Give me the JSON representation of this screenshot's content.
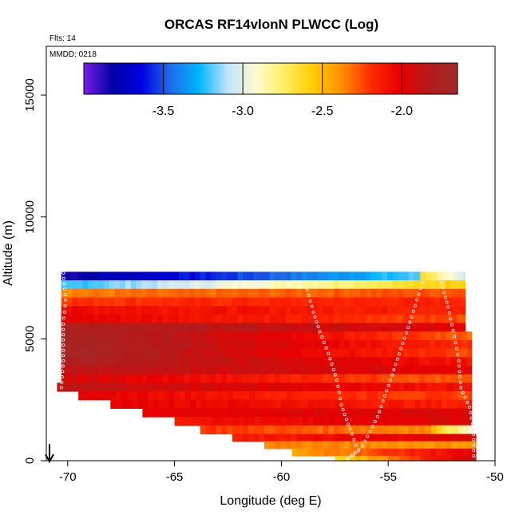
{
  "chart_data": {
    "type": "heatmap",
    "title": "ORCAS RF14vlonN PLWCC (Log)",
    "xlabel": "Longitude (deg E)",
    "ylabel": "Altitude (m)",
    "xlim": [
      -71,
      -50
    ],
    "ylim": [
      0,
      17000
    ],
    "x_ticks": [
      -70,
      -65,
      -60,
      -55,
      -50
    ],
    "x_tick_labels": [
      "-70",
      "-65",
      "-60",
      "-55",
      "-50"
    ],
    "y_ticks": [
      0,
      5000,
      10000,
      15000
    ],
    "y_tick_labels": [
      "0",
      "5000",
      "10000",
      "15000"
    ],
    "annotations": {
      "flights": "Flts: 14",
      "date": "MMDD: 0218"
    },
    "colorbar": {
      "range": [
        -4.0,
        -1.65
      ],
      "ticks": [
        -3.5,
        -3.0,
        -2.5,
        -2.0
      ],
      "tick_labels": [
        "-3.5",
        "-3.0",
        "-2.5",
        "-2.0"
      ],
      "stops": [
        "#7a1fe6",
        "#0000a6",
        "#0000e0",
        "#1e6be8",
        "#00b4ff",
        "#bfe3ff",
        "#fffbd0",
        "#ffee60",
        "#ffcc00",
        "#ff8c00",
        "#ff2a00",
        "#e80000",
        "#b51a1a",
        "#9e2a2a"
      ]
    },
    "layers": [
      {
        "ybot": 7400,
        "ytop": 7750,
        "xl": -70.3,
        "xr": -53.5,
        "vl": -3.85,
        "vr": -3.2
      },
      {
        "ybot": 7400,
        "ytop": 7750,
        "xl": -53.5,
        "xr": -51.4,
        "vl": -2.6,
        "vr": -3.1
      },
      {
        "ybot": 7050,
        "ytop": 7400,
        "xl": -70.3,
        "xr": -51.4,
        "vl": -3.25,
        "vr": -2.55
      },
      {
        "ybot": 6700,
        "ytop": 7050,
        "xl": -70.3,
        "xr": -51.4,
        "vl": -2.35,
        "vr": -2.25
      },
      {
        "ybot": 6350,
        "ytop": 6700,
        "xl": -70.3,
        "xr": -51.4,
        "vl": -2.2,
        "vr": -2.15
      },
      {
        "ybot": 6000,
        "ytop": 6350,
        "xl": -70.3,
        "xr": -51.4,
        "vl": -2.05,
        "vr": -2.15
      },
      {
        "ybot": 5650,
        "ytop": 6000,
        "xl": -70.3,
        "xr": -51.4,
        "vl": -2.0,
        "vr": -2.25
      },
      {
        "ybot": 5300,
        "ytop": 5650,
        "xl": -70.3,
        "xr": -51.4,
        "vl": -1.75,
        "vr": -2.0
      },
      {
        "ybot": 4950,
        "ytop": 5300,
        "xl": -70.3,
        "xr": -51.1,
        "vl": -1.7,
        "vr": -2.3
      },
      {
        "ybot": 4600,
        "ytop": 4950,
        "xl": -70.3,
        "xr": -51.1,
        "vl": -1.7,
        "vr": -2.2
      },
      {
        "ybot": 4250,
        "ytop": 4600,
        "xl": -70.3,
        "xr": -51.1,
        "vl": -1.7,
        "vr": -2.25
      },
      {
        "ybot": 3900,
        "ytop": 4250,
        "xl": -70.3,
        "xr": -51.1,
        "vl": -1.75,
        "vr": -2.1
      },
      {
        "ybot": 3550,
        "ytop": 3900,
        "xl": -70.3,
        "xr": -51.1,
        "vl": -1.85,
        "vr": -2.0
      },
      {
        "ybot": 3200,
        "ytop": 3550,
        "xl": -70.3,
        "xr": -51.1,
        "vl": -1.95,
        "vr": -2.3
      },
      {
        "ybot": 2850,
        "ytop": 3200,
        "xl": -70.5,
        "xr": -51.1,
        "vl": -1.85,
        "vr": -2.1
      },
      {
        "ybot": 2500,
        "ytop": 2850,
        "xl": -69.5,
        "xr": -51.1,
        "vl": -2.0,
        "vr": -2.25
      },
      {
        "ybot": 2150,
        "ytop": 2500,
        "xl": -68.0,
        "xr": -51.1,
        "vl": -2.0,
        "vr": -2.15
      },
      {
        "ybot": 1800,
        "ytop": 2150,
        "xl": -66.5,
        "xr": -51.1,
        "vl": -2.0,
        "vr": -1.95
      },
      {
        "ybot": 1450,
        "ytop": 1800,
        "xl": -65.0,
        "xr": -51.1,
        "vl": -2.1,
        "vr": -1.95
      },
      {
        "ybot": 1100,
        "ytop": 1450,
        "xl": -63.8,
        "xr": -51.1,
        "vl": -2.2,
        "vr": -2.4
      },
      {
        "ybot": 1100,
        "ytop": 1450,
        "xl": -53.0,
        "xr": -51.1,
        "vl": -2.5,
        "vr": -2.95
      },
      {
        "ybot": 800,
        "ytop": 1100,
        "xl": -62.3,
        "xr": -50.9,
        "vl": -2.15,
        "vr": -1.95
      },
      {
        "ybot": 500,
        "ytop": 800,
        "xl": -60.8,
        "xr": -50.9,
        "vl": -2.35,
        "vr": -2.4
      },
      {
        "ybot": 200,
        "ytop": 500,
        "xl": -59.5,
        "xr": -50.9,
        "vl": -2.45,
        "vr": -2.0
      },
      {
        "ybot": 0,
        "ytop": 200,
        "xl": -57.5,
        "xr": -50.9,
        "vl": -2.65,
        "vr": -1.9
      }
    ],
    "flight_tracks": [
      {
        "name": "track-a",
        "points": [
          [
            -70.2,
            7700
          ],
          [
            -70.1,
            6600
          ],
          [
            -70.2,
            5600
          ],
          [
            -70.2,
            4100
          ],
          [
            -70.3,
            3000
          ]
        ]
      },
      {
        "name": "track-b",
        "points": [
          [
            -58.8,
            7000
          ],
          [
            -58.5,
            6100
          ],
          [
            -58.2,
            5300
          ],
          [
            -57.8,
            4400
          ],
          [
            -57.4,
            3300
          ],
          [
            -57.2,
            2300
          ],
          [
            -56.7,
            1100
          ],
          [
            -56.4,
            400
          ],
          [
            -56.9,
            100
          ]
        ]
      },
      {
        "name": "track-c",
        "points": [
          [
            -56.9,
            50
          ],
          [
            -56.2,
            600
          ],
          [
            -55.5,
            1800
          ],
          [
            -54.9,
            3300
          ],
          [
            -54.4,
            4600
          ],
          [
            -53.9,
            5900
          ],
          [
            -53.4,
            7300
          ]
        ]
      },
      {
        "name": "track-d",
        "points": [
          [
            -52.5,
            7300
          ],
          [
            -52.2,
            6300
          ],
          [
            -51.9,
            5100
          ],
          [
            -51.7,
            4100
          ],
          [
            -51.6,
            3000
          ],
          [
            -51.2,
            2200
          ],
          [
            -51.0,
            1300
          ],
          [
            -51.0,
            200
          ]
        ]
      }
    ]
  }
}
